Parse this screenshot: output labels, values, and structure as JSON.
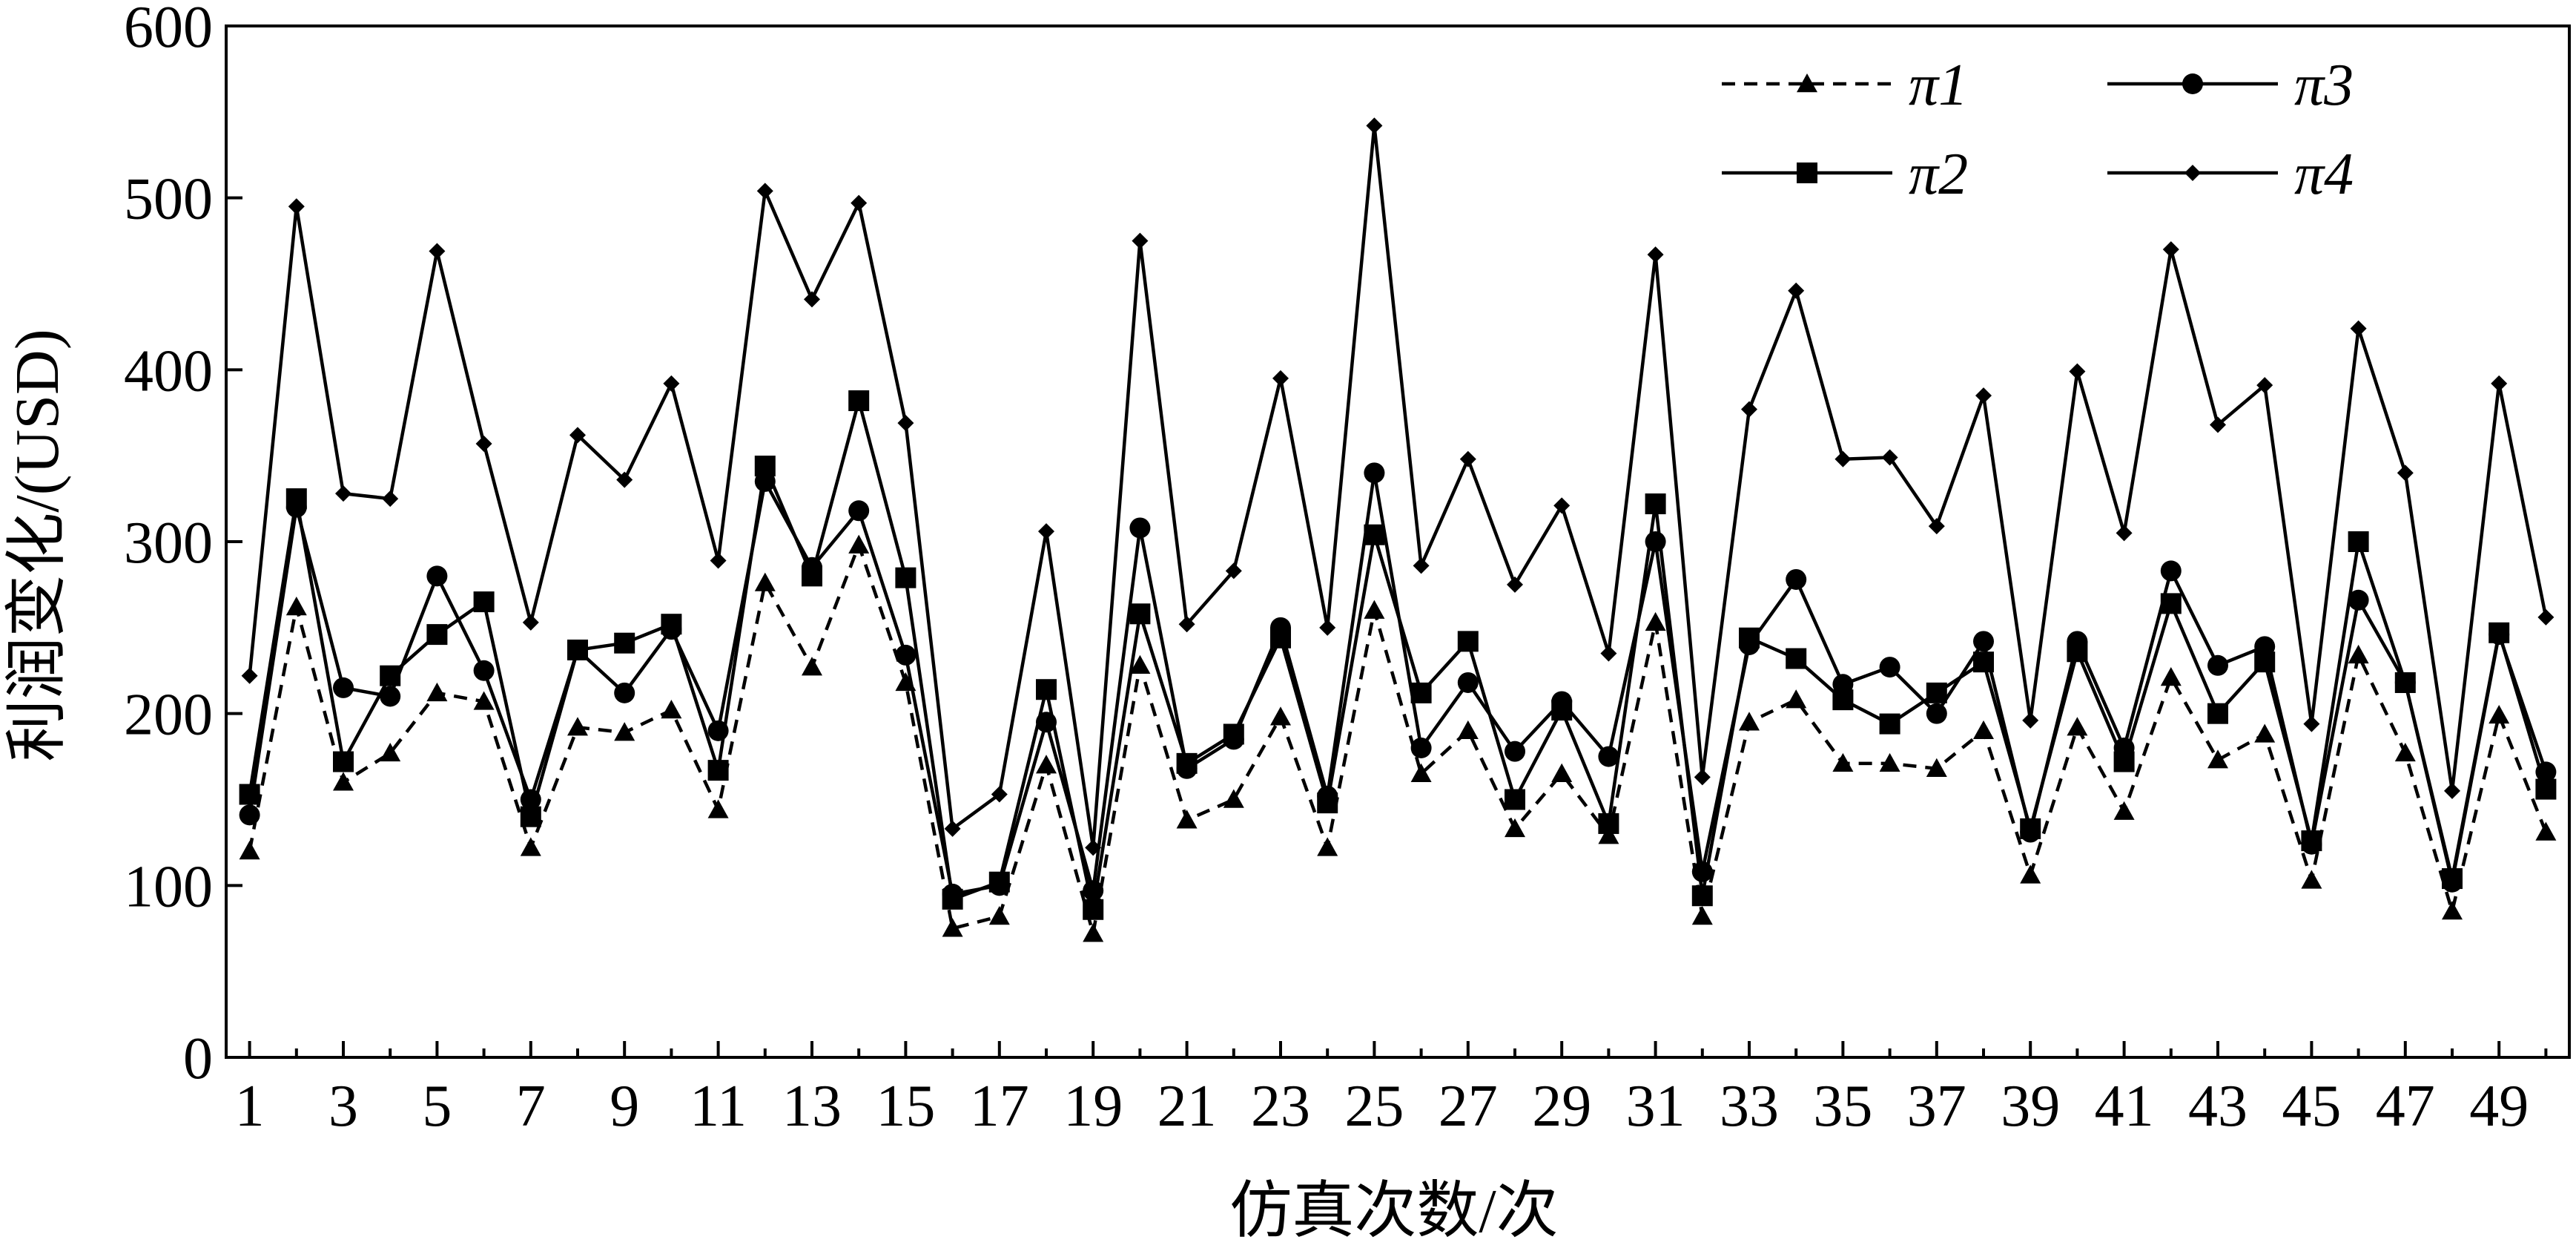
{
  "chart_data": {
    "type": "line",
    "xlabel": "仿真次数/次",
    "ylabel": "利润变化/(USD)",
    "xlim": [
      0.5,
      50.5
    ],
    "ylim": [
      0,
      600
    ],
    "x_ticks": [
      1,
      3,
      5,
      7,
      9,
      11,
      13,
      15,
      17,
      19,
      21,
      23,
      25,
      27,
      29,
      31,
      33,
      35,
      37,
      39,
      41,
      43,
      45,
      47,
      49
    ],
    "y_ticks": [
      0,
      100,
      200,
      300,
      400,
      500,
      600
    ],
    "grid": false,
    "legend_position": "top-right",
    "x": [
      1,
      2,
      3,
      4,
      5,
      6,
      7,
      8,
      9,
      10,
      11,
      12,
      13,
      14,
      15,
      16,
      17,
      18,
      19,
      20,
      21,
      22,
      23,
      24,
      25,
      26,
      27,
      28,
      29,
      30,
      31,
      32,
      33,
      34,
      35,
      36,
      37,
      38,
      39,
      40,
      41,
      42,
      43,
      44,
      45,
      46,
      47,
      48,
      49,
      50
    ],
    "series": [
      {
        "name": "π1",
        "marker": "triangle",
        "line": "dashed",
        "values": [
          120,
          262,
          160,
          177,
          212,
          207,
          122,
          192,
          189,
          202,
          144,
          276,
          227,
          298,
          218,
          75,
          82,
          170,
          72,
          228,
          138,
          150,
          198,
          122,
          260,
          165,
          190,
          133,
          165,
          129,
          253,
          82,
          195,
          208,
          171,
          171,
          168,
          190,
          106,
          192,
          143,
          221,
          173,
          188,
          103,
          234,
          177,
          85,
          199,
          131
        ]
      },
      {
        "name": "π2",
        "marker": "square",
        "line": "solid",
        "values": [
          153,
          325,
          172,
          222,
          246,
          265,
          140,
          237,
          241,
          252,
          167,
          344,
          280,
          382,
          279,
          92,
          102,
          214,
          86,
          258,
          171,
          188,
          244,
          148,
          304,
          212,
          242,
          150,
          202,
          136,
          322,
          94,
          244,
          232,
          208,
          194,
          212,
          230,
          133,
          236,
          172,
          264,
          200,
          230,
          126,
          300,
          218,
          104,
          247,
          156
        ]
      },
      {
        "name": "π3",
        "marker": "circle",
        "line": "solid",
        "values": [
          141,
          320,
          215,
          210,
          280,
          225,
          150,
          237,
          212,
          249,
          190,
          335,
          285,
          318,
          234,
          95,
          100,
          195,
          97,
          308,
          168,
          185,
          250,
          152,
          340,
          180,
          218,
          178,
          207,
          175,
          300,
          108,
          240,
          278,
          217,
          227,
          200,
          242,
          131,
          242,
          180,
          283,
          228,
          239,
          124,
          266,
          218,
          102,
          246,
          166
        ]
      },
      {
        "name": "π4",
        "marker": "diamond",
        "line": "solid",
        "values": [
          222,
          495,
          328,
          325,
          469,
          357,
          253,
          362,
          336,
          392,
          289,
          504,
          441,
          497,
          369,
          133,
          153,
          306,
          122,
          475,
          252,
          283,
          395,
          250,
          542,
          286,
          348,
          275,
          321,
          235,
          467,
          163,
          377,
          446,
          348,
          349,
          309,
          385,
          196,
          399,
          305,
          470,
          368,
          391,
          194,
          424,
          340,
          155,
          392,
          256
        ]
      }
    ]
  }
}
